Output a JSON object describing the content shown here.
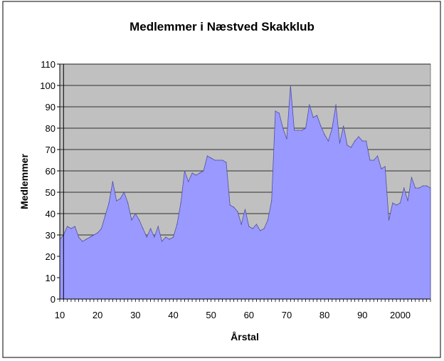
{
  "chart_data": {
    "type": "area",
    "title": "Medlemmer i Næstved Skakklub",
    "xlabel": "Årstal",
    "ylabel": "Medlemmer",
    "ylim": [
      0,
      110
    ],
    "xlim": [
      1910,
      2008
    ],
    "y_ticks": [
      0,
      10,
      20,
      30,
      40,
      50,
      60,
      70,
      80,
      90,
      100,
      110
    ],
    "x_ticks": [
      {
        "value": 1910,
        "label": "10"
      },
      {
        "value": 1920,
        "label": "20"
      },
      {
        "value": 1930,
        "label": "30"
      },
      {
        "value": 1940,
        "label": "40"
      },
      {
        "value": 1950,
        "label": "50"
      },
      {
        "value": 1960,
        "label": "60"
      },
      {
        "value": 1970,
        "label": "70"
      },
      {
        "value": 1980,
        "label": "80"
      },
      {
        "value": 1990,
        "label": "90"
      },
      {
        "value": 2000,
        "label": "2000"
      }
    ],
    "grid": true,
    "legend": "none",
    "series": [
      {
        "color": "#9999ff",
        "x": [
          1910,
          1911,
          1912,
          1913,
          1914,
          1915,
          1916,
          1917,
          1918,
          1919,
          1920,
          1921,
          1922,
          1923,
          1924,
          1925,
          1926,
          1927,
          1928,
          1929,
          1930,
          1931,
          1932,
          1933,
          1934,
          1935,
          1936,
          1937,
          1938,
          1939,
          1940,
          1941,
          1942,
          1943,
          1944,
          1945,
          1946,
          1947,
          1948,
          1949,
          1950,
          1951,
          1952,
          1953,
          1954,
          1955,
          1956,
          1957,
          1958,
          1959,
          1960,
          1961,
          1962,
          1963,
          1964,
          1965,
          1966,
          1967,
          1968,
          1969,
          1970,
          1971,
          1972,
          1973,
          1974,
          1975,
          1976,
          1977,
          1978,
          1979,
          1980,
          1981,
          1982,
          1983,
          1984,
          1985,
          1986,
          1987,
          1988,
          1989,
          1990,
          1991,
          1992,
          1993,
          1994,
          1995,
          1996,
          1997,
          1998,
          1999,
          2000,
          2001,
          2002,
          2003,
          2004,
          2005,
          2006,
          2007,
          2008
        ],
        "values": [
          28,
          30,
          34,
          33,
          34,
          29,
          27,
          28,
          29,
          30,
          31,
          33,
          39,
          45,
          55,
          46,
          47,
          50,
          45,
          37,
          40,
          37,
          33,
          29,
          33,
          29,
          34,
          27,
          29,
          28,
          29,
          35,
          45,
          60,
          55,
          59,
          58,
          59,
          60,
          67,
          66,
          65,
          65,
          65,
          64,
          44,
          43,
          41,
          35,
          42,
          34,
          33,
          35,
          32,
          33,
          37,
          46,
          88,
          87,
          80,
          75,
          100,
          79,
          79,
          79,
          80,
          91,
          85,
          86,
          81,
          77,
          74,
          80,
          91,
          73,
          81,
          72,
          71,
          74,
          76,
          74,
          74,
          65,
          65,
          67,
          61,
          62,
          37,
          45,
          44,
          45,
          52,
          46,
          57,
          52,
          52,
          53,
          53,
          52
        ]
      }
    ]
  }
}
